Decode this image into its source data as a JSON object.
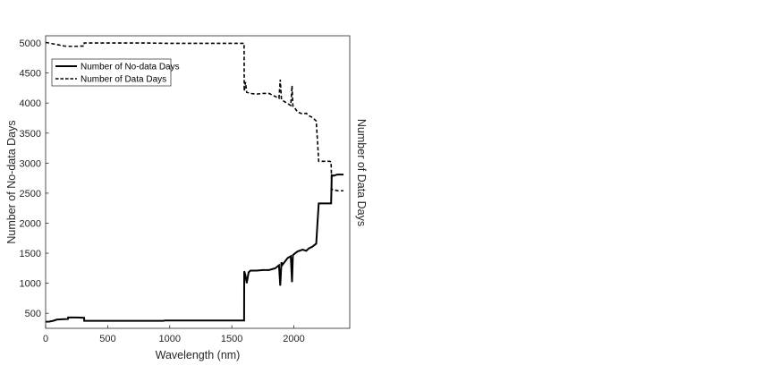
{
  "chart_data": {
    "type": "line",
    "xlabel": "Wavelength (nm)",
    "ylabel": "Number of No-data Days",
    "ylabel_right": "Number of Data Days",
    "xlim": [
      0,
      2450
    ],
    "ylim": [
      250,
      5120
    ],
    "xticks": [
      0,
      500,
      1000,
      1500,
      2000
    ],
    "yticks": [
      500,
      1000,
      1500,
      2000,
      2500,
      3000,
      3500,
      4000,
      4500,
      5000
    ],
    "grid": false,
    "legend_position": "top-left",
    "series": [
      {
        "name": "Number of No-data Days",
        "style": "solid",
        "color": "#000000",
        "x": [
          0,
          30,
          60,
          90,
          130,
          180,
          181,
          250,
          310,
          311,
          500,
          800,
          950,
          960,
          1100,
          1250,
          1400,
          1599,
          1600,
          1610,
          1620,
          1635,
          1650,
          1700,
          1750,
          1800,
          1850,
          1880,
          1890,
          1900,
          1905,
          1950,
          1975,
          1985,
          1992,
          2010,
          2030,
          2070,
          2100,
          2120,
          2150,
          2180,
          2190,
          2200,
          2210,
          2250,
          2290,
          2300,
          2305,
          2320,
          2350,
          2400
        ],
        "y": [
          360,
          362,
          375,
          395,
          400,
          405,
          430,
          430,
          425,
          375,
          375,
          375,
          375,
          380,
          380,
          380,
          380,
          380,
          1200,
          1130,
          1000,
          1180,
          1210,
          1210,
          1220,
          1220,
          1250,
          1300,
          960,
          1350,
          1300,
          1420,
          1450,
          1020,
          1470,
          1500,
          1530,
          1560,
          1540,
          1580,
          1610,
          1660,
          2000,
          2330,
          2330,
          2330,
          2330,
          2330,
          2800,
          2790,
          2810,
          2810
        ]
      },
      {
        "name": "Number of Data Days",
        "style": "dashed",
        "color": "#000000",
        "x": [
          0,
          50,
          100,
          150,
          180,
          250,
          310,
          311,
          500,
          800,
          960,
          1100,
          1250,
          1400,
          1599,
          1600,
          1610,
          1620,
          1635,
          1650,
          1700,
          1750,
          1800,
          1850,
          1880,
          1890,
          1900,
          1905,
          1950,
          1975,
          1985,
          1992,
          2010,
          2030,
          2070,
          2100,
          2120,
          2150,
          2180,
          2190,
          2200,
          2210,
          2250,
          2290,
          2300,
          2305,
          2320,
          2350,
          2400
        ],
        "y": [
          5010,
          4990,
          4970,
          4950,
          4945,
          4945,
          4950,
          5000,
          5000,
          5000,
          4995,
          4995,
          4995,
          4995,
          4995,
          4200,
          4350,
          4180,
          4170,
          4160,
          4150,
          4160,
          4160,
          4110,
          4080,
          4390,
          4060,
          4050,
          3990,
          3960,
          4290,
          3950,
          3910,
          3850,
          3820,
          3830,
          3790,
          3760,
          3700,
          3370,
          3030,
          3030,
          3030,
          3030,
          3020,
          2560,
          2560,
          2540,
          2540
        ]
      }
    ]
  }
}
